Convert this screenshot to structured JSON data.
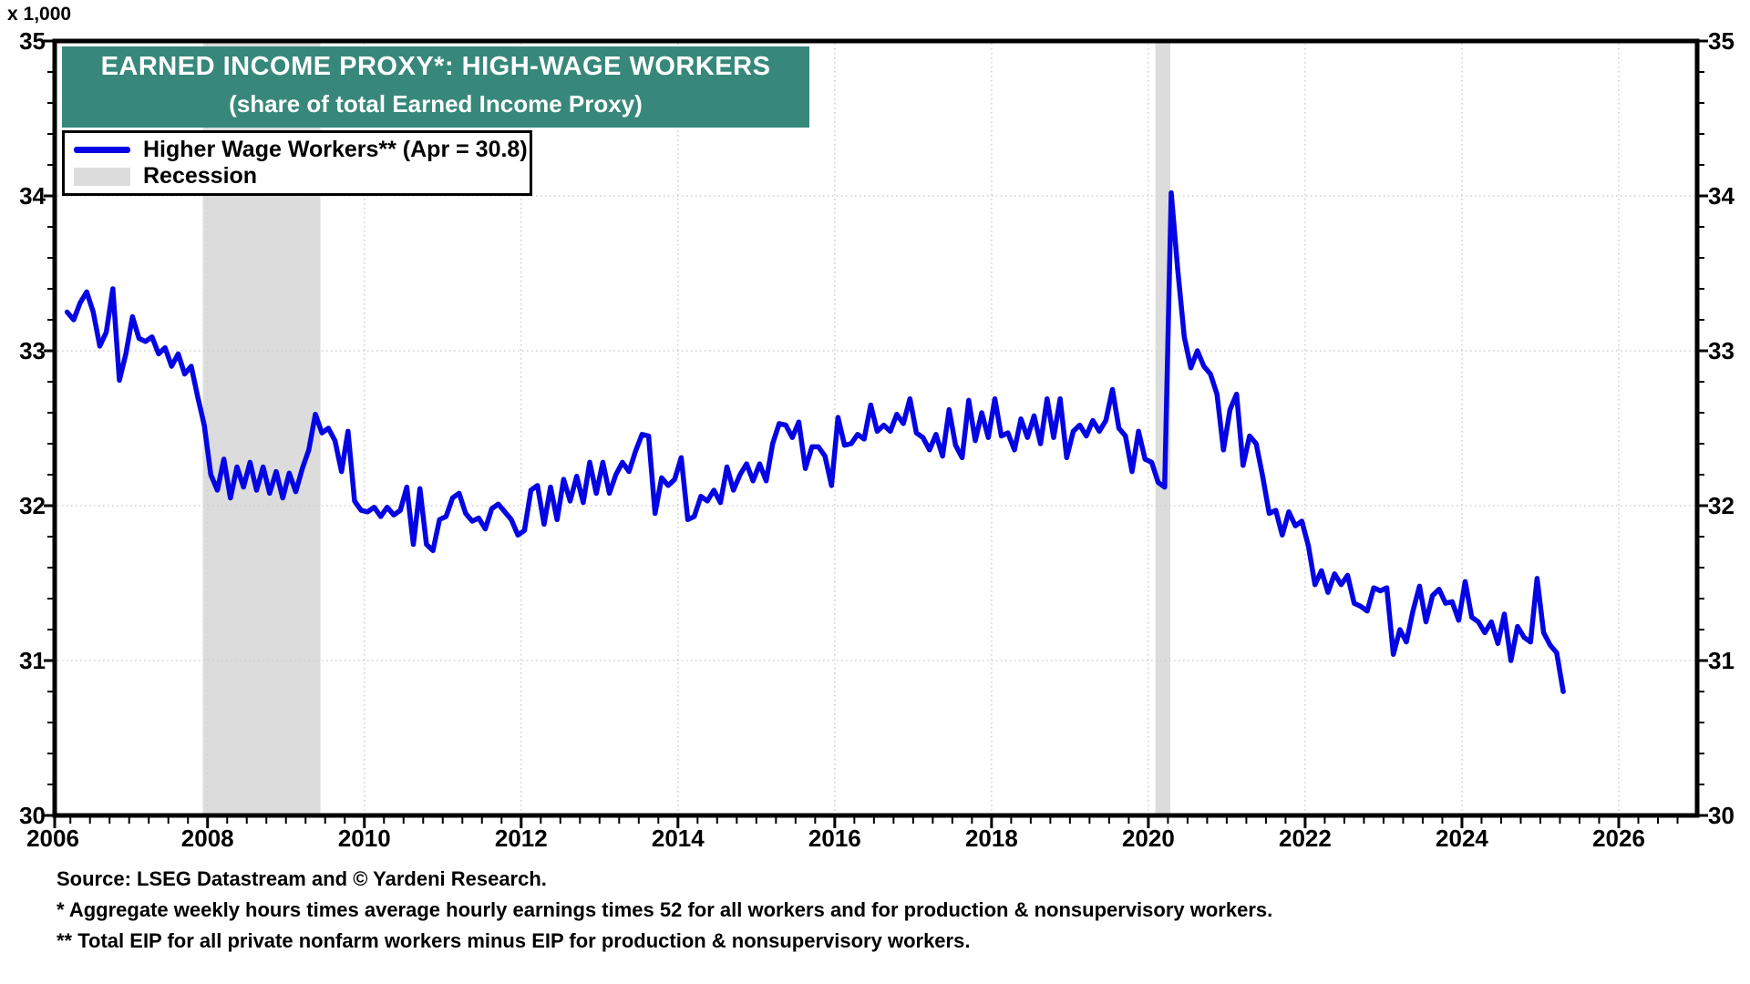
{
  "chart": {
    "unit_label": "x 1,000",
    "title": "EARNED INCOME PROXY*: HIGH-WAGE WORKERS",
    "subtitle": "(share of total Earned Income Proxy)",
    "banner_color": "#37887A",
    "title_text_color": "#FFFFFF",
    "line_color": "#0404E4",
    "recession_color": "#DCDCDC",
    "grid_color": "#CFCFCF",
    "axis_color": "#000000"
  },
  "legend": {
    "series_label": "Higher Wage Workers** (Apr = 30.8)",
    "recession_label": "Recession"
  },
  "footer": {
    "source": "Source: LSEG Datastream and © Yardeni Research.",
    "note1": "* Aggregate weekly hours times average hourly earnings times 52 for all workers and for production & nonsupervisory workers.",
    "note2": "** Total EIP for all private nonfarm workers minus EIP for production & nonsupervisory workers."
  },
  "chart_data": {
    "type": "line",
    "title": "EARNED INCOME PROXY*: HIGH-WAGE WORKERS",
    "subtitle": "(share of total Earned Income Proxy)",
    "xlabel": "",
    "ylabel": "x 1,000",
    "grid": "dotted-major",
    "legend_position": "top-left",
    "y_axis": {
      "min": 30,
      "max": 35,
      "major_step": 1,
      "minor_step": 0.2,
      "tick_labels": [
        "30",
        "31",
        "32",
        "33",
        "34",
        "35"
      ]
    },
    "x_axis": {
      "min": 2006.05,
      "max": 2027.0,
      "minor_step": 0.25,
      "major_tick_years": [
        2006,
        2008,
        2010,
        2012,
        2014,
        2016,
        2018,
        2020,
        2022,
        2024,
        2026
      ],
      "tick_labels": [
        "2006",
        "2008",
        "2010",
        "2012",
        "2014",
        "2016",
        "2018",
        "2020",
        "2022",
        "2024",
        "2026"
      ]
    },
    "recessions": [
      {
        "start": 2007.94,
        "end": 2009.44
      },
      {
        "start": 2020.09,
        "end": 2020.28
      }
    ],
    "series": [
      {
        "name": "Higher Wage Workers** (Apr = 30.8)",
        "frequency": "monthly",
        "start_year": 2006,
        "start_month": 3,
        "last_point_label": "Apr = 30.8",
        "values": [
          33.25,
          33.2,
          33.31,
          33.38,
          33.25,
          33.03,
          33.12,
          33.4,
          32.81,
          32.98,
          33.22,
          33.08,
          33.06,
          33.09,
          32.98,
          33.02,
          32.9,
          32.98,
          32.85,
          32.9,
          32.7,
          32.52,
          32.2,
          32.1,
          32.3,
          32.05,
          32.25,
          32.12,
          32.28,
          32.1,
          32.25,
          32.08,
          32.22,
          32.05,
          32.21,
          32.09,
          32.24,
          32.36,
          32.59,
          32.47,
          32.5,
          32.42,
          32.22,
          32.48,
          32.03,
          31.97,
          31.96,
          31.99,
          31.93,
          31.99,
          31.94,
          31.97,
          32.12,
          31.75,
          32.11,
          31.75,
          31.71,
          31.91,
          31.93,
          32.05,
          32.08,
          31.95,
          31.9,
          31.92,
          31.85,
          31.98,
          32.01,
          31.96,
          31.91,
          31.81,
          31.84,
          32.1,
          32.13,
          31.88,
          32.12,
          31.91,
          32.17,
          32.03,
          32.19,
          32.02,
          32.28,
          32.08,
          32.28,
          32.08,
          32.2,
          32.28,
          32.22,
          32.35,
          32.46,
          32.45,
          31.95,
          32.18,
          32.13,
          32.17,
          32.31,
          31.91,
          31.93,
          32.06,
          32.03,
          32.1,
          32.02,
          32.25,
          32.1,
          32.2,
          32.27,
          32.16,
          32.27,
          32.16,
          32.4,
          32.53,
          32.52,
          32.44,
          32.54,
          32.24,
          32.38,
          32.38,
          32.32,
          32.13,
          32.57,
          32.39,
          32.4,
          32.46,
          32.43,
          32.65,
          32.48,
          32.52,
          32.48,
          32.59,
          32.53,
          32.69,
          32.47,
          32.44,
          32.36,
          32.46,
          32.32,
          32.62,
          32.39,
          32.31,
          32.68,
          32.42,
          32.6,
          32.44,
          32.69,
          32.45,
          32.47,
          32.36,
          32.56,
          32.44,
          32.58,
          32.4,
          32.69,
          32.44,
          32.69,
          32.31,
          32.48,
          32.52,
          32.45,
          32.55,
          32.48,
          32.55,
          32.75,
          32.5,
          32.45,
          32.22,
          32.48,
          32.3,
          32.28,
          32.15,
          32.12,
          34.02,
          33.52,
          33.09,
          32.89,
          33.0,
          32.9,
          32.85,
          32.72,
          32.36,
          32.62,
          32.72,
          32.26,
          32.45,
          32.4,
          32.19,
          31.95,
          31.97,
          31.81,
          31.96,
          31.87,
          31.9,
          31.74,
          31.49,
          31.58,
          31.44,
          31.56,
          31.49,
          31.55,
          31.37,
          31.35,
          31.32,
          31.47,
          31.45,
          31.47,
          31.04,
          31.2,
          31.12,
          31.32,
          31.48,
          31.25,
          31.42,
          31.46,
          31.37,
          31.38,
          31.26,
          31.51,
          31.28,
          31.25,
          31.18,
          31.25,
          31.11,
          31.3,
          31.0,
          31.22,
          31.15,
          31.12,
          31.53,
          31.18,
          31.1,
          31.05,
          30.8
        ]
      }
    ]
  }
}
